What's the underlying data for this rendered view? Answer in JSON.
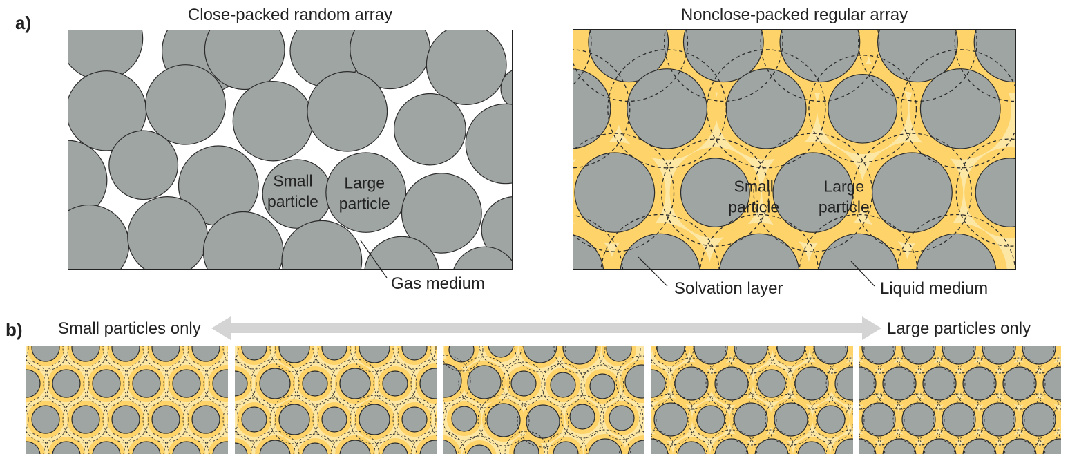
{
  "panel_a": {
    "letter": "a)",
    "left": {
      "title": "Close-packed random array",
      "small_label": [
        "Small",
        "particle"
      ],
      "large_label": [
        "Large",
        "particle"
      ],
      "callout": "Gas medium"
    },
    "right": {
      "title": "Nonclose-packed regular array",
      "small_label": [
        "Small",
        "particle"
      ],
      "large_label": [
        "Large",
        "particle"
      ],
      "callout_solvation": "Solvation layer",
      "callout_liquid": "Liquid medium"
    }
  },
  "panel_b": {
    "letter": "b)",
    "left_label": "Small particles only",
    "right_label": "Large particles only"
  },
  "colors": {
    "particle": "#9fa5a3",
    "particle_stroke": "#2b2b2b",
    "solvation": "#fdd36a",
    "liquid": "#fde7a5",
    "gas": "#ffffff",
    "arrow": "#d4d4d4"
  }
}
